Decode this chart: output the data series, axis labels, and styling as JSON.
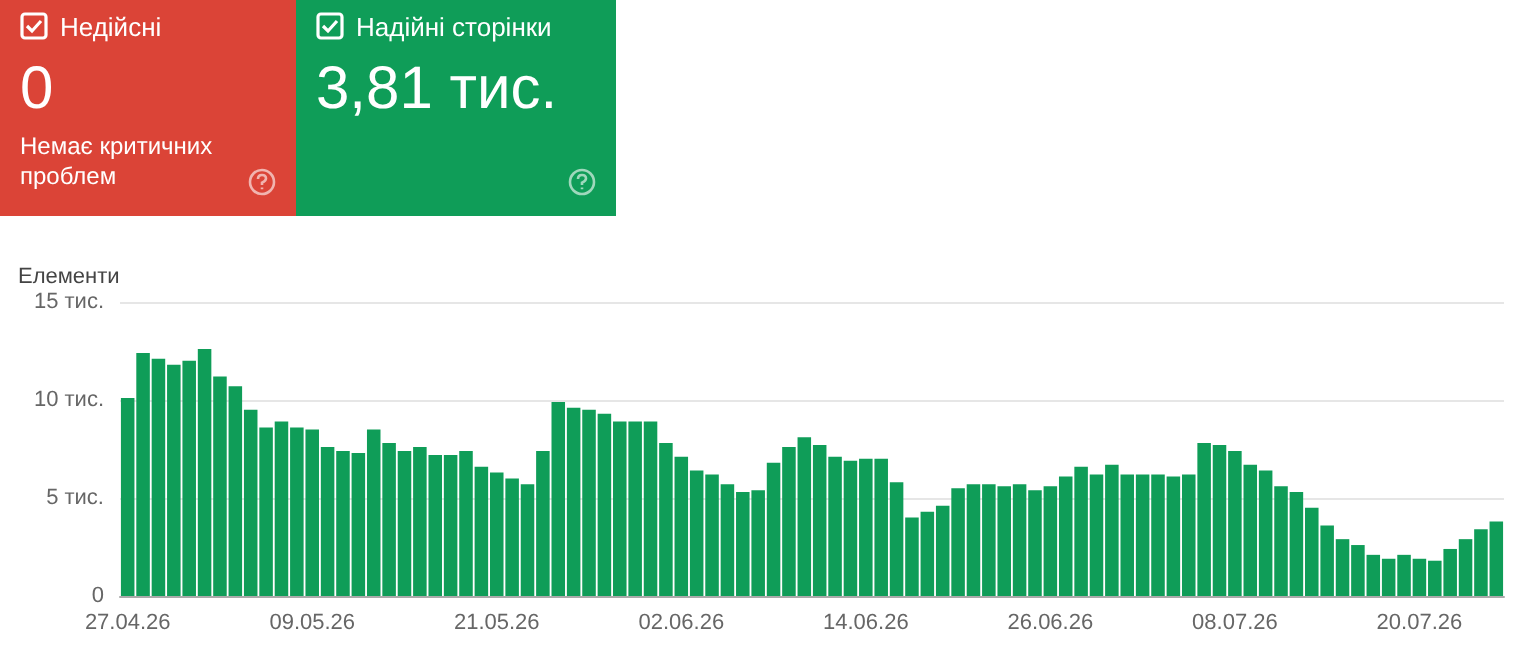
{
  "chart_data": [
    {
      "type": "other",
      "title": "Недійсні",
      "subtitle": "0",
      "annotations": [
        "Немає критичних проблем"
      ],
      "color": "#db4437"
    },
    {
      "type": "other",
      "title": "Надійні сторінки",
      "subtitle": "3,81 тис.",
      "color": "#0f9d58"
    },
    {
      "type": "bar",
      "ylabel": "Елементи",
      "color": "#0f9d58",
      "grid": "y",
      "categories": [
        "27.04.26",
        null,
        null,
        null,
        null,
        null,
        null,
        null,
        null,
        null,
        null,
        null,
        "09.05.26",
        null,
        null,
        null,
        null,
        null,
        null,
        null,
        null,
        null,
        null,
        null,
        "21.05.26",
        null,
        null,
        null,
        null,
        null,
        null,
        null,
        null,
        null,
        null,
        null,
        "02.06.26",
        null,
        null,
        null,
        null,
        null,
        null,
        null,
        null,
        null,
        null,
        null,
        "14.06.26",
        null,
        null,
        null,
        null,
        null,
        null,
        null,
        null,
        null,
        null,
        null,
        "26.06.26",
        null,
        null,
        null,
        null,
        null,
        null,
        null,
        null,
        null,
        null,
        null,
        "08.07.26",
        null,
        null,
        null,
        null,
        null,
        null,
        null,
        null,
        null,
        null,
        null,
        "20.07.26",
        null,
        null,
        null,
        null,
        null
      ],
      "values": [
        10.1,
        12.4,
        12.1,
        11.8,
        12,
        12.6,
        11.2,
        10.7,
        9.5,
        8.6,
        8.9,
        8.6,
        8.5,
        7.6,
        7.4,
        7.3,
        8.5,
        7.8,
        7.4,
        7.6,
        7.2,
        7.2,
        7.4,
        6.6,
        6.3,
        6,
        5.7,
        7.4,
        9.9,
        9.6,
        9.5,
        9.3,
        8.9,
        8.9,
        8.9,
        7.8,
        7.1,
        6.4,
        6.2,
        5.7,
        5.3,
        5.4,
        6.8,
        7.6,
        8.1,
        7.7,
        7.1,
        6.9,
        7,
        7,
        5.8,
        4,
        4.3,
        4.6,
        5.5,
        5.7,
        5.7,
        5.6,
        5.7,
        5.4,
        5.6,
        6.1,
        6.6,
        6.2,
        6.7,
        6.2,
        6.2,
        6.2,
        6.1,
        6.2,
        7.8,
        7.7,
        7.4,
        6.7,
        6.4,
        5.6,
        5.3,
        4.5,
        3.6,
        2.9,
        2.6,
        2.1,
        1.9,
        2.1,
        1.9,
        1.8,
        2.4,
        2.9,
        3.4,
        3.8
      ],
      "ylim": [
        0,
        15
      ],
      "yticks": [
        0,
        {
          "value": 5,
          "label": "5 тис."
        },
        {
          "value": 10,
          "label": "10 тис."
        },
        {
          "value": 15,
          "label": "15 тис."
        }
      ]
    }
  ]
}
